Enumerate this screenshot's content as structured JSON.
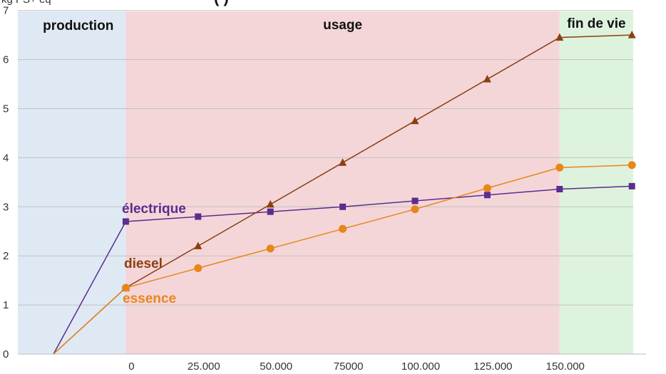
{
  "chart_data": {
    "type": "line",
    "top_left_text": "kg PS+ eq",
    "title_fragment": "(                                                    )",
    "phases": [
      {
        "name": "production",
        "color": "#dfe9f4"
      },
      {
        "name": "usage",
        "color": "#f4d6d9"
      },
      {
        "name": "fin de vie",
        "color": "#def3dd"
      }
    ],
    "x_tick_labels": [
      "0",
      "25.000",
      "50.000",
      "75000",
      "100.000",
      "125.000",
      "150.000"
    ],
    "x_ticks": [
      0,
      25000,
      50000,
      75000,
      100000,
      125000,
      150000
    ],
    "xlim": [
      -25000,
      175000
    ],
    "y_tick_labels": [
      "0",
      "1",
      "2",
      "3",
      "4",
      "5",
      "6",
      "7"
    ],
    "ylim": [
      0,
      7.4
    ],
    "grid": true,
    "series": [
      {
        "name": "électrique",
        "color": "#5a2d8e",
        "marker": "square",
        "x": [
          -25000,
          0,
          25000,
          50000,
          75000,
          100000,
          125000,
          150000,
          175000
        ],
        "values": [
          0,
          2.7,
          2.8,
          2.9,
          3.0,
          3.12,
          3.24,
          3.36,
          3.42
        ]
      },
      {
        "name": "diesel",
        "color": "#8b3f10",
        "marker": "triangle",
        "x": [
          -25000,
          0,
          25000,
          50000,
          75000,
          100000,
          125000,
          150000,
          175000
        ],
        "values": [
          0,
          1.35,
          2.2,
          3.05,
          3.9,
          4.75,
          5.6,
          6.45,
          6.5
        ]
      },
      {
        "name": "essence",
        "color": "#e8861a",
        "marker": "circle",
        "x": [
          -25000,
          0,
          25000,
          50000,
          75000,
          100000,
          125000,
          150000,
          175000
        ],
        "values": [
          0,
          1.35,
          1.75,
          2.15,
          2.55,
          2.95,
          3.38,
          3.8,
          3.85
        ]
      }
    ]
  }
}
